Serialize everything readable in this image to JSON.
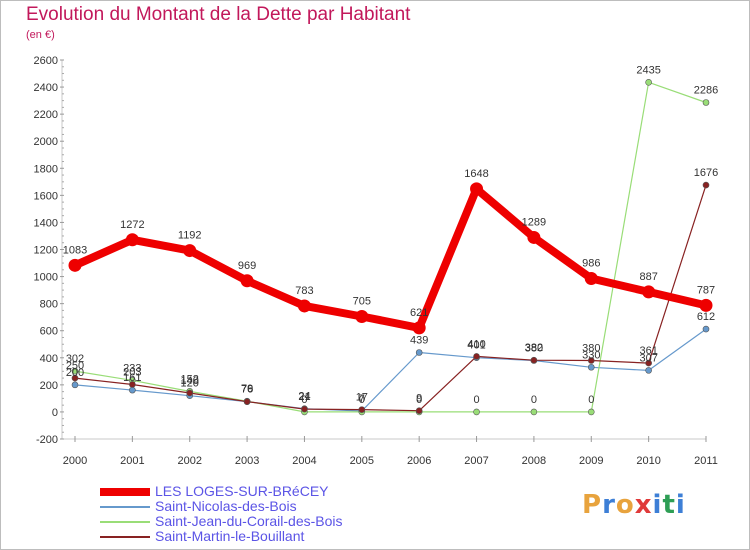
{
  "header": {
    "title": "Evolution du Montant de la Dette par Habitant",
    "unit": "(en €)"
  },
  "chart_data": {
    "type": "line",
    "title": "Evolution du Montant de la Dette par Habitant",
    "subtitle": "(en €)",
    "x": [
      "2000",
      "2001",
      "2002",
      "2003",
      "2004",
      "2005",
      "2006",
      "2007",
      "2008",
      "2009",
      "2010",
      "2011"
    ],
    "ylim": [
      -200,
      2600
    ],
    "yticks": [
      -200,
      0,
      200,
      400,
      600,
      800,
      1000,
      1200,
      1400,
      1600,
      1800,
      2000,
      2200,
      2400,
      2600
    ],
    "grid": false,
    "legend_position": "bottom-left",
    "series": [
      {
        "name": "LES LOGES-SUR-BRéCEY",
        "color": "#ee0000",
        "values": [
          1083,
          1272,
          1192,
          969,
          783,
          705,
          621,
          1648,
          1289,
          986,
          887,
          787
        ]
      },
      {
        "name": "Saint-Nicolas-des-Bois",
        "color": "#6699cc",
        "values": [
          200,
          161,
          120,
          76,
          24,
          7,
          439,
          401,
          380,
          330,
          307,
          612
        ]
      },
      {
        "name": "Saint-Jean-du-Corail-des-Bois",
        "color": "#99dd77",
        "values": [
          302,
          233,
          152,
          79,
          0,
          0,
          0,
          0,
          0,
          0,
          2435,
          2286
        ]
      },
      {
        "name": "Saint-Martin-le-Bouillant",
        "color": "#882222",
        "values": [
          250,
          203,
          140,
          76,
          21,
          17,
          9,
          410,
          382,
          380,
          361,
          1676
        ]
      }
    ],
    "point_labels": [
      [
        "1083",
        "1272",
        "1192",
        "969",
        "783",
        "705",
        "621",
        "1648",
        "1289",
        "986",
        "887",
        "787"
      ],
      [
        "200",
        "161",
        "120",
        "76",
        "24",
        "7",
        "439",
        "401",
        "380",
        "330",
        "307",
        "612"
      ],
      [
        "302",
        "233",
        "152",
        "79",
        "0",
        "0",
        "0",
        "0",
        "0",
        "0",
        "2435",
        "2286"
      ],
      [
        "250",
        "203",
        "140",
        "76",
        "21",
        "17",
        "9",
        "410",
        "382",
        "380",
        "361",
        "1676"
      ]
    ]
  },
  "legend": [
    {
      "label": "LES LOGES-SUR-BRéCEY",
      "color": "#ee0000"
    },
    {
      "label": "Saint-Nicolas-des-Bois",
      "color": "#6699cc"
    },
    {
      "label": "Saint-Jean-du-Corail-des-Bois",
      "color": "#99dd77"
    },
    {
      "label": "Saint-Martin-le-Bouillant",
      "color": "#882222"
    }
  ],
  "brand": {
    "logo_text": "Proxiti",
    "logo_colors": [
      "#e8a33d",
      "#3d7fd6",
      "#e8a33d",
      "#e03a3a",
      "#3d7fd6",
      "#2e9e55",
      "#3d7fd6"
    ]
  }
}
